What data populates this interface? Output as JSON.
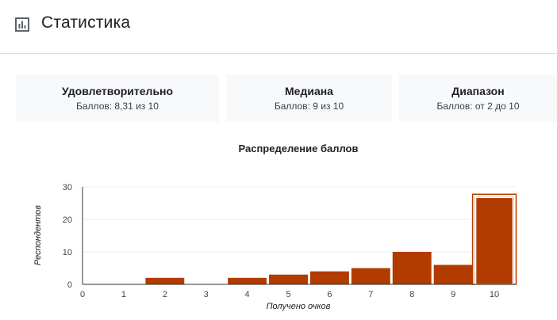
{
  "header": {
    "title": "Статистика",
    "icon": "bar-chart-icon"
  },
  "cards": [
    {
      "title": "Удовлетворительно",
      "subtitle": "Баллов: 8,31 из 10"
    },
    {
      "title": "Медиана",
      "subtitle": "Баллов: 9 из 10"
    },
    {
      "title": "Диапазон",
      "subtitle": "Баллов: от 2 до 10"
    }
  ],
  "chart_data": {
    "type": "bar",
    "title": "Распределение баллов",
    "xlabel": "Получено очков",
    "ylabel": "Респондентов",
    "categories": [
      "0",
      "1",
      "2",
      "3",
      "4",
      "5",
      "6",
      "7",
      "8",
      "9",
      "10"
    ],
    "values": [
      0,
      0,
      2,
      0,
      2,
      3,
      4,
      5,
      10,
      6,
      27
    ],
    "highlighted_category": "10",
    "yticks": [
      0,
      10,
      20,
      30
    ],
    "ylim": [
      0,
      30
    ],
    "grid": true,
    "colors": {
      "bar": "#b23b00",
      "highlight_outline": "#b23b00",
      "grid": "#eeeeee",
      "axis": "#333333"
    }
  }
}
